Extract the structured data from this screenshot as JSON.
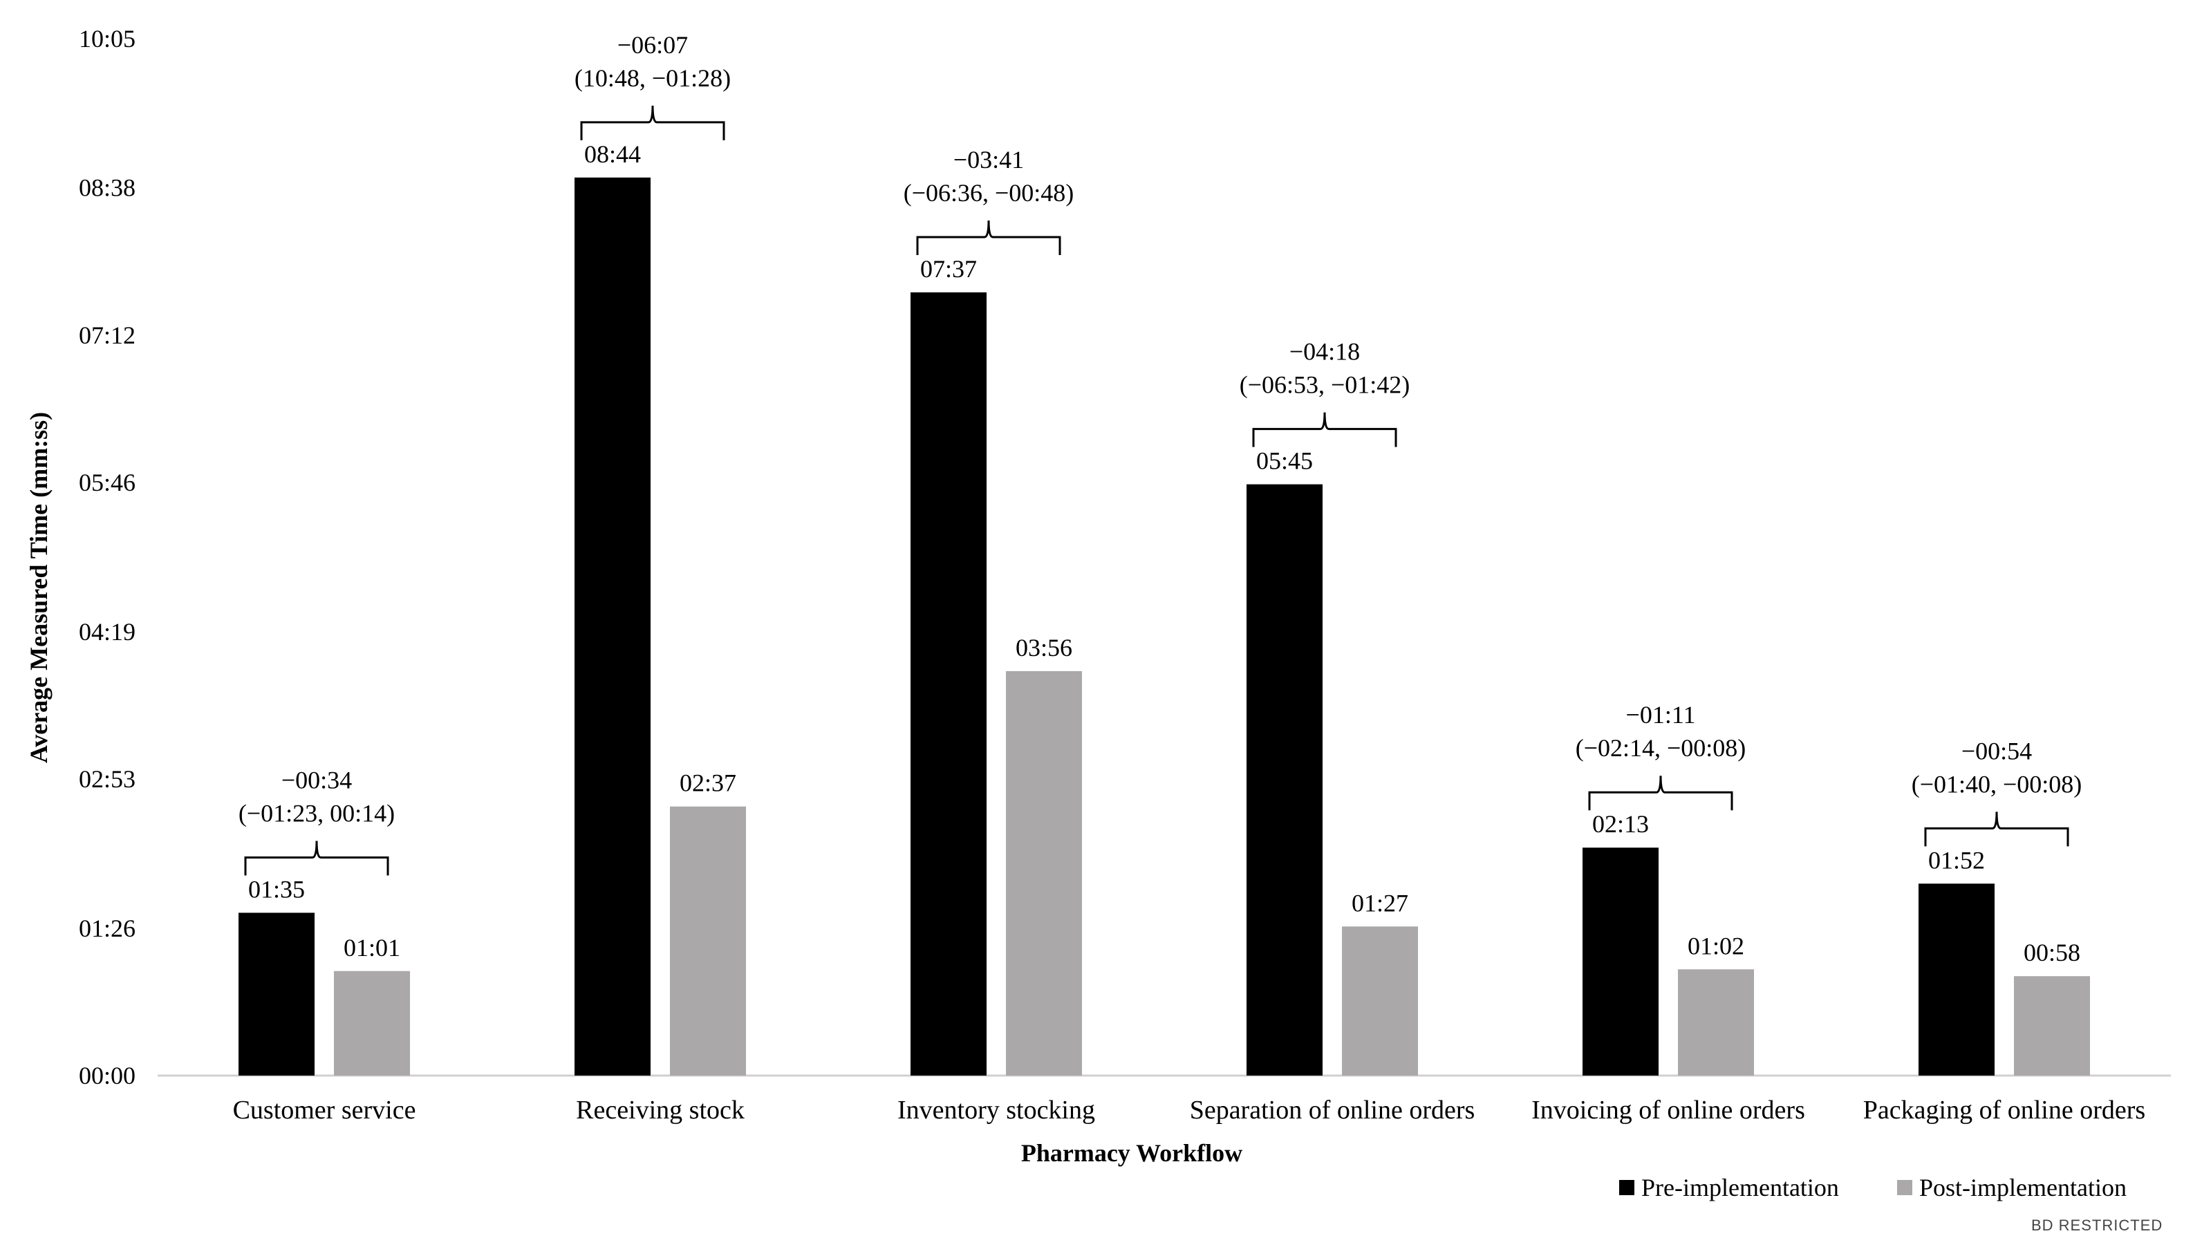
{
  "chart_data": {
    "type": "bar",
    "title": "",
    "xlabel": "Pharmacy Workflow",
    "ylabel": "Average Measured Time (mm:ss)",
    "ylim": [
      0,
      605
    ],
    "y_ticks": [
      {
        "value": 0,
        "label": "00:00"
      },
      {
        "value": 86,
        "label": "01:26"
      },
      {
        "value": 173,
        "label": "02:53"
      },
      {
        "value": 259,
        "label": "04:19"
      },
      {
        "value": 346,
        "label": "05:46"
      },
      {
        "value": 432,
        "label": "07:12"
      },
      {
        "value": 518,
        "label": "08:38"
      },
      {
        "value": 605,
        "label": "10:05"
      }
    ],
    "categories": [
      "Customer service",
      "Receiving stock",
      "Inventory stocking",
      "Separation of online orders",
      "Invoicing of online orders",
      "Packaging of online orders"
    ],
    "series": [
      {
        "name": "Pre-implementation",
        "color": "#000000",
        "values": [
          95,
          524,
          457,
          345,
          133,
          112
        ],
        "labels": [
          "01:35",
          "08:44",
          "07:37",
          "05:45",
          "02:13",
          "01:52"
        ]
      },
      {
        "name": "Post-implementation",
        "color": "#aaa8a8",
        "values": [
          61,
          157,
          236,
          87,
          62,
          58
        ],
        "labels": [
          "01:01",
          "02:37",
          "03:56",
          "01:27",
          "01:02",
          "00:58"
        ]
      }
    ],
    "differences": [
      {
        "diff": "−00:34",
        "ci": "(−01:23, 00:14)"
      },
      {
        "diff": "−06:07",
        "ci": "(10:48, −01:28)"
      },
      {
        "diff": "−03:41",
        "ci": "(−06:36, −00:48)"
      },
      {
        "diff": "−04:18",
        "ci": "(−06:53, −01:42)"
      },
      {
        "diff": "−01:11",
        "ci": "(−02:14, −00:08)"
      },
      {
        "diff": "−00:54",
        "ci": "(−01:40, −00:08)"
      }
    ],
    "legend_position": "bottom-right",
    "grid": false
  },
  "footer": {
    "classification": "BD RESTRICTED"
  }
}
